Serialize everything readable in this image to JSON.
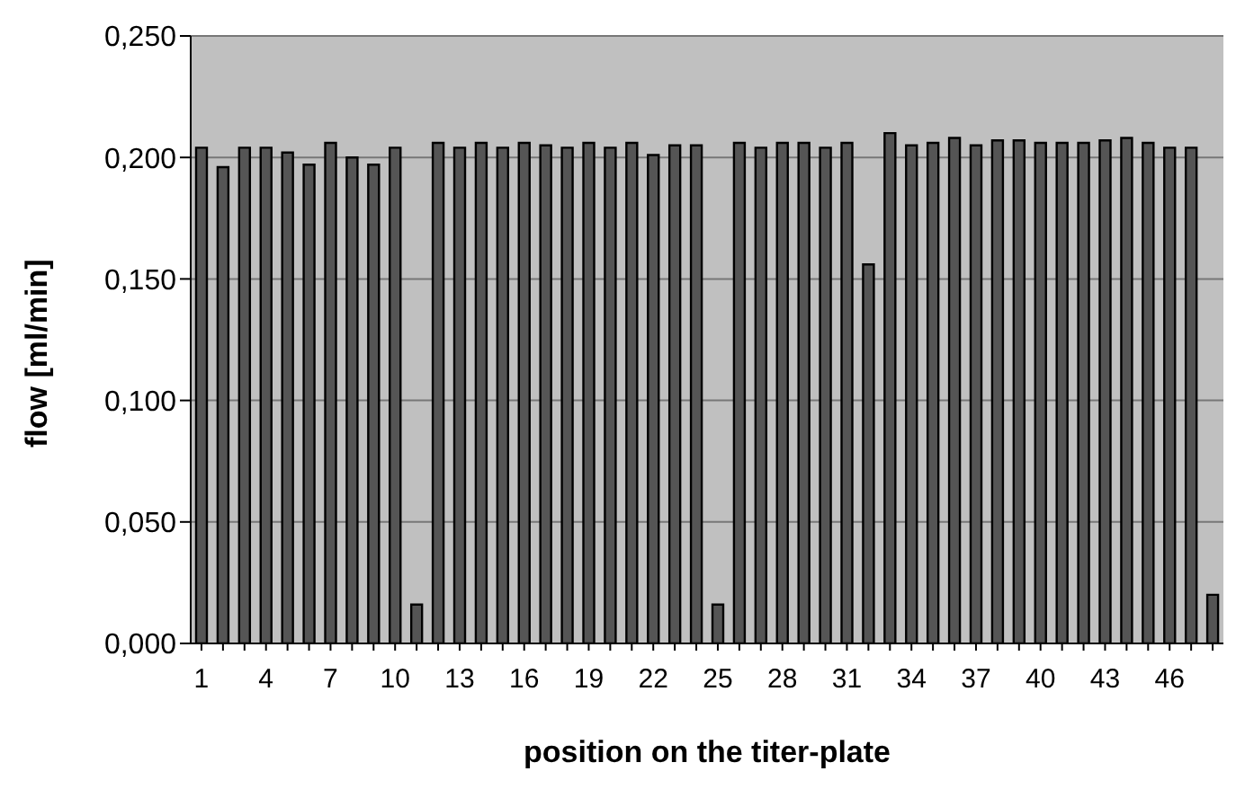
{
  "chart_data": {
    "type": "bar",
    "xlabel": "position on the titer-plate",
    "ylabel": "flow [ml/min]",
    "categories": [
      "1",
      null,
      null,
      "4",
      null,
      null,
      "7",
      null,
      null,
      "10",
      null,
      null,
      "13",
      null,
      null,
      "16",
      null,
      null,
      "19",
      null,
      null,
      "22",
      null,
      null,
      "25",
      null,
      null,
      "28",
      null,
      null,
      "31",
      null,
      null,
      "34",
      null,
      null,
      "37",
      null,
      null,
      "40",
      null,
      null,
      "43",
      null,
      null,
      "46",
      null,
      null
    ],
    "values": [
      0.204,
      0.196,
      0.204,
      0.204,
      0.202,
      0.197,
      0.206,
      0.2,
      0.197,
      0.204,
      0.016,
      0.206,
      0.204,
      0.206,
      0.204,
      0.206,
      0.205,
      0.204,
      0.206,
      0.204,
      0.206,
      0.201,
      0.205,
      0.205,
      0.016,
      0.206,
      0.204,
      0.206,
      0.206,
      0.204,
      0.206,
      0.156,
      0.21,
      0.205,
      0.206,
      0.208,
      0.205,
      0.207,
      0.207,
      0.206,
      0.206,
      0.206,
      0.207,
      0.208,
      0.206,
      0.204,
      0.204,
      0.02
    ],
    "color": "#555555",
    "ylim": [
      0,
      0.25
    ],
    "yticks": [
      {
        "value": 0,
        "label": "0,000"
      },
      {
        "value": 0.05,
        "label": "0,050"
      },
      {
        "value": 0.1,
        "label": "0,100"
      },
      {
        "value": 0.15,
        "label": "0,150"
      },
      {
        "value": 0.2,
        "label": "0,200"
      },
      {
        "value": 0.25,
        "label": "0,250"
      }
    ],
    "grid": "y"
  }
}
